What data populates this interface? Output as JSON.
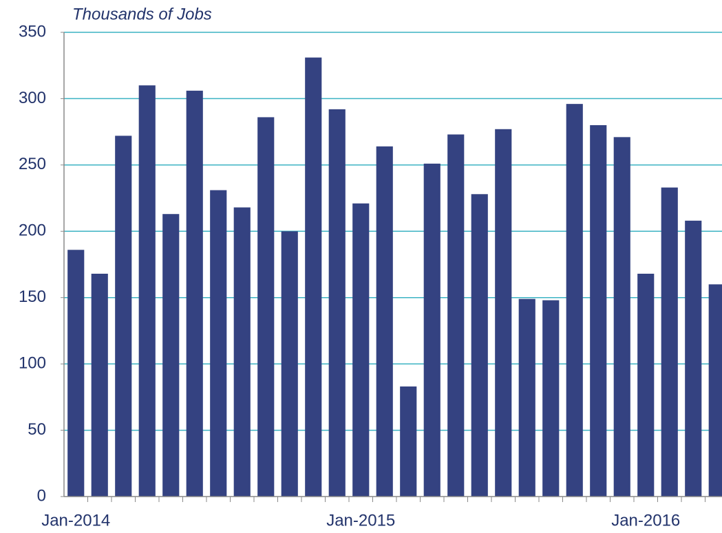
{
  "chart_data": {
    "type": "bar",
    "y_axis_label": "Thousands of Jobs",
    "categories": [
      "Jan-2014",
      null,
      null,
      null,
      null,
      null,
      null,
      null,
      null,
      null,
      null,
      null,
      "Jan-2015",
      null,
      null,
      null,
      null,
      null,
      null,
      null,
      null,
      null,
      null,
      null,
      "Jan-2016",
      null,
      null,
      null
    ],
    "values": [
      186,
      168,
      272,
      310,
      213,
      306,
      231,
      218,
      286,
      200,
      331,
      292,
      221,
      264,
      83,
      251,
      273,
      228,
      277,
      149,
      148,
      296,
      280,
      271,
      168,
      233,
      208,
      160
    ],
    "color": "#344281",
    "ylim": [
      0,
      350
    ],
    "yticks": [
      0,
      50,
      100,
      150,
      200,
      250,
      300,
      350
    ],
    "grid": true,
    "grid_color": "#3bb3c3"
  }
}
